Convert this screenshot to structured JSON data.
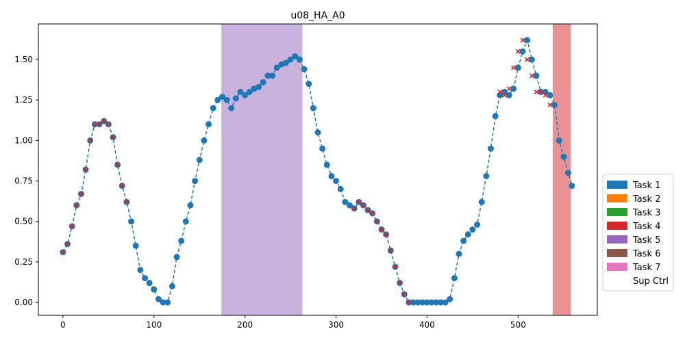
{
  "chart_data": {
    "type": "scatter",
    "title": "u08_HA_A0",
    "xlabel": "",
    "ylabel": "",
    "xlim": [
      -27,
      587
    ],
    "ylim": [
      -0.08,
      1.72
    ],
    "x_ticks": [
      0,
      100,
      200,
      300,
      400,
      500
    ],
    "y_ticks": [
      0.0,
      0.25,
      0.5,
      0.75,
      1.0,
      1.25,
      1.5
    ],
    "y_tick_labels": [
      "0.00",
      "0.25",
      "0.50",
      "0.75",
      "1.00",
      "1.25",
      "1.50"
    ],
    "grid": false,
    "legend": {
      "placement": "right",
      "entries": [
        {
          "label": "Task 1",
          "color": "#1f77b4"
        },
        {
          "label": "Task 2",
          "color": "#ff7f0e"
        },
        {
          "label": "Task 3",
          "color": "#2ca02c"
        },
        {
          "label": "Task 4",
          "color": "#d62728"
        },
        {
          "label": "Task 5",
          "color": "#9467bd"
        },
        {
          "label": "Task 6",
          "color": "#8c564b"
        },
        {
          "label": "Task 7",
          "color": "#e377c2"
        },
        {
          "label": "Sup Ctrl",
          "color": "#ffffff"
        }
      ]
    },
    "shaded_regions": [
      {
        "task": "Task 5",
        "x_start": 174,
        "x_end": 263,
        "color": "#c8b3df"
      },
      {
        "task": "Task 4",
        "x_start": 538,
        "x_end": 558,
        "color": "#ea9293"
      }
    ],
    "series": [
      {
        "style": "blue-dots-dashed",
        "color": "#1f77b4",
        "x": [
          0,
          5,
          10,
          15,
          20,
          25,
          30,
          35,
          40,
          45,
          50,
          55,
          60,
          65,
          70,
          75,
          80,
          85,
          90,
          95,
          100,
          105,
          110,
          115,
          120,
          125,
          130,
          135,
          140,
          145,
          150,
          155,
          160,
          165,
          170,
          175,
          180,
          185,
          190,
          195,
          200,
          205,
          210,
          215,
          220,
          225,
          230,
          235,
          240,
          245,
          250,
          255,
          260,
          265,
          270,
          275,
          280,
          285,
          290,
          295,
          300,
          305,
          310,
          315,
          320,
          325,
          330,
          335,
          340,
          345,
          350,
          355,
          360,
          365,
          370,
          375,
          380,
          385,
          390,
          395,
          400,
          405,
          410,
          415,
          420,
          425,
          430,
          435,
          440,
          445,
          450,
          455,
          460,
          465,
          470,
          475,
          480,
          485,
          490,
          495,
          500,
          505,
          510,
          515,
          520,
          525,
          530,
          535,
          540,
          545,
          550,
          555,
          559
        ],
        "y": [
          0.31,
          0.36,
          0.47,
          0.6,
          0.67,
          0.82,
          1.0,
          1.1,
          1.1,
          1.12,
          1.1,
          1.02,
          0.85,
          0.72,
          0.62,
          0.5,
          0.35,
          0.2,
          0.15,
          0.12,
          0.08,
          0.02,
          0.0,
          0.0,
          0.1,
          0.28,
          0.38,
          0.5,
          0.6,
          0.75,
          0.88,
          1.0,
          1.1,
          1.2,
          1.25,
          1.27,
          1.25,
          1.2,
          1.26,
          1.3,
          1.28,
          1.3,
          1.32,
          1.33,
          1.36,
          1.4,
          1.4,
          1.45,
          1.47,
          1.48,
          1.5,
          1.52,
          1.5,
          1.44,
          1.35,
          1.2,
          1.05,
          0.95,
          0.85,
          0.78,
          0.75,
          0.7,
          0.62,
          0.6,
          0.58,
          0.62,
          0.6,
          0.57,
          0.55,
          0.5,
          0.45,
          0.42,
          0.32,
          0.22,
          0.12,
          0.05,
          0.0,
          0.0,
          0.0,
          0.0,
          0.0,
          0.0,
          0.0,
          0.0,
          0.0,
          0.02,
          0.15,
          0.3,
          0.38,
          0.42,
          0.45,
          0.48,
          0.62,
          0.78,
          0.95,
          1.15,
          1.28,
          1.3,
          1.28,
          1.32,
          1.45,
          1.55,
          1.62,
          1.5,
          1.4,
          1.3,
          1.3,
          1.28,
          1.22,
          1.0,
          0.9,
          0.8,
          0.72
        ]
      },
      {
        "style": "red-x-overlay",
        "color": "#d62728",
        "x": [
          0,
          5,
          10,
          15,
          20,
          25,
          30,
          35,
          40,
          45,
          50,
          55,
          60,
          65,
          70,
          320,
          325,
          330,
          335,
          340,
          345,
          350,
          355,
          360,
          365,
          370,
          375,
          380,
          480,
          485,
          490,
          495,
          500,
          505,
          510,
          515,
          520,
          525,
          530,
          535
        ],
        "y": [
          0.31,
          0.36,
          0.47,
          0.6,
          0.67,
          0.82,
          1.0,
          1.1,
          1.1,
          1.12,
          1.1,
          1.02,
          0.85,
          0.72,
          0.62,
          0.58,
          0.62,
          0.6,
          0.57,
          0.55,
          0.5,
          0.45,
          0.42,
          0.32,
          0.22,
          0.12,
          0.05,
          0.0,
          1.3,
          1.28,
          1.32,
          1.45,
          1.55,
          1.62,
          1.5,
          1.4,
          1.3,
          1.3,
          1.28,
          1.22
        ]
      }
    ]
  }
}
